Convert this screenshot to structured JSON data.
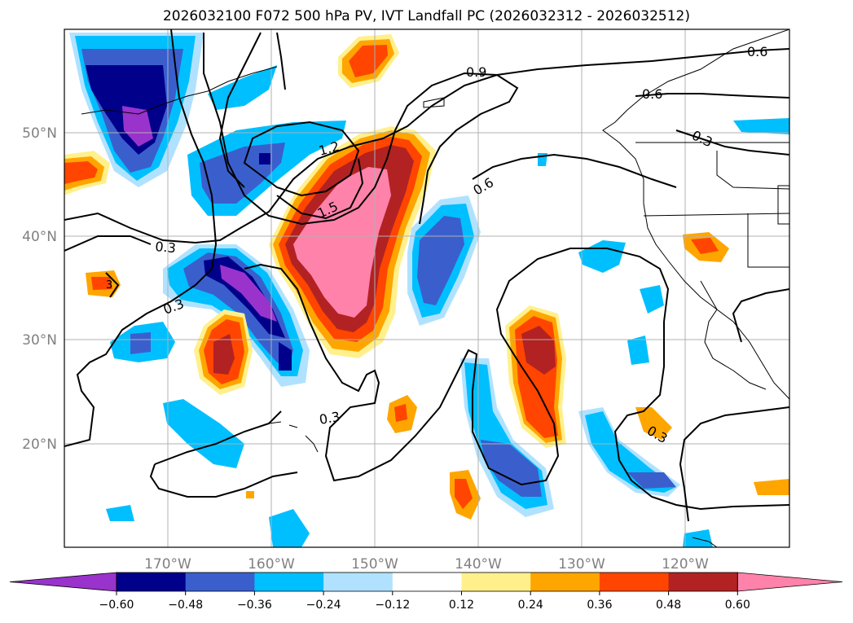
{
  "title": "2026032100 F072 500 hPa PV, IVT Landfall PC (2026032312 - 2026032512)",
  "map": {
    "lon_ticks": [
      "170°W",
      "160°W",
      "150°W",
      "140°W",
      "130°W",
      "120°W"
    ],
    "lat_ticks": [
      "50°N",
      "40°N",
      "30°N",
      "20°N"
    ],
    "extent": {
      "lon": [
        -180,
        -110
      ],
      "lat": [
        10,
        60
      ]
    },
    "grid": true
  },
  "colorbar": {
    "ticks": [
      "−0.60",
      "−0.48",
      "−0.36",
      "−0.24",
      "−0.12",
      "0.12",
      "0.24",
      "0.36",
      "0.48",
      "0.60"
    ],
    "colors": [
      "#9933cc",
      "#00008b",
      "#3a5fcd",
      "#00bfff",
      "#b0e2ff",
      "#ffffff",
      "#fff08c",
      "#ffa500",
      "#ff4500",
      "#b22222",
      "#ff82ab"
    ]
  },
  "contour_labels": [
    "0.6",
    "0.9",
    "0.6",
    "0.3",
    "1.2",
    "1.5",
    "0.6",
    "0.3",
    "0.3",
    "0.3",
    "0.3",
    "3"
  ]
}
